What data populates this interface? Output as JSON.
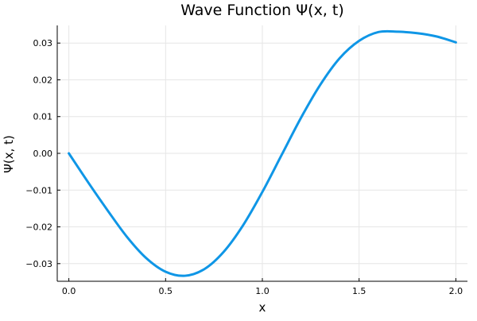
{
  "chart_data": {
    "type": "line",
    "title": "Wave Function Ψ(x, t)",
    "xlabel": "x",
    "ylabel": "Ψ(x, t)",
    "xlim": [
      -0.06,
      2.06
    ],
    "ylim": [
      -0.0348,
      0.0348
    ],
    "xticks": [
      0.0,
      0.5,
      1.0,
      1.5,
      2.0
    ],
    "xtick_labels": [
      "0.0",
      "0.5",
      "1.0",
      "1.5",
      "2.0"
    ],
    "yticks": [
      -0.03,
      -0.02,
      -0.01,
      0.0,
      0.01,
      0.02,
      0.03
    ],
    "ytick_labels": [
      "−0.03",
      "−0.02",
      "−0.01",
      "0.00",
      "0.01",
      "0.02",
      "0.03"
    ],
    "grid": true,
    "legend": "none",
    "series": [
      {
        "color": "#0f96e6",
        "x": [
          0.0,
          0.1,
          0.2,
          0.3,
          0.4,
          0.5,
          0.6,
          0.7,
          0.8,
          0.9,
          1.0,
          1.1,
          1.2,
          1.3,
          1.4,
          1.5,
          1.6,
          1.7,
          1.8,
          1.9,
          2.0
        ],
        "y": [
          0.0,
          -0.0079,
          -0.0155,
          -0.0227,
          -0.0285,
          -0.0322,
          -0.0333,
          -0.0315,
          -0.0268,
          -0.0196,
          -0.0105,
          -0.0004,
          0.0097,
          0.0187,
          0.0259,
          0.0306,
          0.033,
          0.0331,
          0.0327,
          0.0318,
          0.0302
        ]
      }
    ]
  }
}
